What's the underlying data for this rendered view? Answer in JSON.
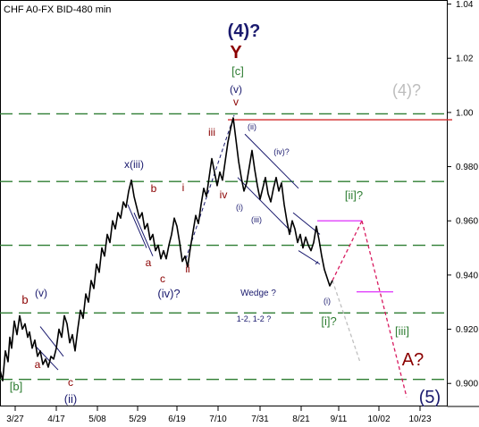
{
  "chart_data": {
    "type": "line",
    "title": "CHF A0-FX BID-480 min",
    "y_ticks": [
      "1.04",
      "1.02",
      "1.00",
      "0.980",
      "0.960",
      "0.940",
      "0.920",
      "0.900"
    ],
    "y_values": [
      1.04,
      1.02,
      1.0,
      0.98,
      0.96,
      0.94,
      0.92,
      0.9
    ],
    "ylim": [
      0.8915,
      1.0415
    ],
    "x_ticks": [
      "3/27",
      "4/17",
      "5/08",
      "5/29",
      "6/19",
      "7/10",
      "7/31",
      "8/21",
      "9/11",
      "10/02",
      "10/23"
    ],
    "grid": false,
    "series": [
      {
        "type": "price",
        "points": [
          [
            0,
            0.905
          ],
          [
            3,
            0.901
          ],
          [
            6,
            0.912
          ],
          [
            9,
            0.908
          ],
          [
            11,
            0.917
          ],
          [
            13,
            0.913
          ],
          [
            16,
            0.923
          ],
          [
            19,
            0.918
          ],
          [
            22,
            0.925
          ],
          [
            25,
            0.92
          ],
          [
            28,
            0.922
          ],
          [
            31,
            0.917
          ],
          [
            33,
            0.919
          ],
          [
            36,
            0.913
          ],
          [
            39,
            0.916
          ],
          [
            42,
            0.91
          ],
          [
            45,
            0.912
          ],
          [
            48,
            0.907
          ],
          [
            51,
            0.909
          ],
          [
            54,
            0.906
          ],
          [
            57,
            0.91
          ],
          [
            60,
            0.909
          ],
          [
            63,
            0.913
          ],
          [
            66,
            0.92
          ],
          [
            69,
            0.917
          ],
          [
            72,
            0.925
          ],
          [
            75,
            0.922
          ],
          [
            78,
            0.915
          ],
          [
            81,
            0.918
          ],
          [
            84,
            0.912
          ],
          [
            87,
            0.92
          ],
          [
            90,
            0.927
          ],
          [
            93,
            0.924
          ],
          [
            96,
            0.933
          ],
          [
            99,
            0.93
          ],
          [
            102,
            0.938
          ],
          [
            105,
            0.935
          ],
          [
            108,
            0.944
          ],
          [
            111,
            0.941
          ],
          [
            114,
            0.95
          ],
          [
            117,
            0.947
          ],
          [
            120,
            0.955
          ],
          [
            123,
            0.952
          ],
          [
            126,
            0.96
          ],
          [
            129,
            0.957
          ],
          [
            132,
            0.963
          ],
          [
            135,
            0.961
          ],
          [
            138,
            0.967
          ],
          [
            141,
            0.965
          ],
          [
            144,
            0.971
          ],
          [
            147,
            0.975
          ],
          [
            150,
            0.969
          ],
          [
            153,
            0.965
          ],
          [
            156,
            0.961
          ],
          [
            159,
            0.963
          ],
          [
            162,
            0.957
          ],
          [
            165,
            0.959
          ],
          [
            168,
            0.953
          ],
          [
            171,
            0.955
          ],
          [
            174,
            0.949
          ],
          [
            177,
            0.951
          ],
          [
            180,
            0.946
          ],
          [
            183,
            0.949
          ],
          [
            186,
            0.946
          ],
          [
            189,
            0.951
          ],
          [
            192,
            0.955
          ],
          [
            195,
            0.961
          ],
          [
            198,
            0.958
          ],
          [
            201,
            0.952
          ],
          [
            204,
            0.945
          ],
          [
            207,
            0.947
          ],
          [
            210,
            0.943
          ],
          [
            213,
            0.95
          ],
          [
            216,
            0.956
          ],
          [
            219,
            0.962
          ],
          [
            222,
            0.959
          ],
          [
            225,
            0.966
          ],
          [
            228,
            0.972
          ],
          [
            231,
            0.969
          ],
          [
            234,
            0.976
          ],
          [
            237,
            0.983
          ],
          [
            240,
            0.978
          ],
          [
            243,
            0.973
          ],
          [
            246,
            0.978
          ],
          [
            249,
            0.975
          ],
          [
            252,
            0.982
          ],
          [
            255,
            0.989
          ],
          [
            258,
            0.994
          ],
          [
            261,
            0.998
          ],
          [
            264,
            0.99
          ],
          [
            267,
            0.982
          ],
          [
            270,
            0.976
          ],
          [
            273,
            0.971
          ],
          [
            276,
            0.974
          ],
          [
            279,
            0.98
          ],
          [
            282,
            0.986
          ],
          [
            285,
            0.979
          ],
          [
            288,
            0.973
          ],
          [
            291,
            0.968
          ],
          [
            294,
            0.972
          ],
          [
            297,
            0.976
          ],
          [
            300,
            0.97
          ],
          [
            303,
            0.967
          ],
          [
            306,
            0.972
          ],
          [
            309,
            0.976
          ],
          [
            312,
            0.971
          ],
          [
            315,
            0.974
          ],
          [
            318,
            0.966
          ],
          [
            321,
            0.96
          ],
          [
            324,
            0.955
          ],
          [
            327,
            0.96
          ],
          [
            330,
            0.957
          ],
          [
            333,
            0.952
          ],
          [
            336,
            0.955
          ],
          [
            339,
            0.95
          ],
          [
            342,
            0.954
          ],
          [
            345,
            0.951
          ],
          [
            348,
            0.949
          ],
          [
            351,
            0.952
          ],
          [
            354,
            0.958
          ],
          [
            357,
            0.953
          ],
          [
            360,
            0.947
          ],
          [
            363,
            0.942
          ],
          [
            366,
            0.939
          ],
          [
            369,
            0.936
          ],
          [
            372,
            0.938
          ]
        ]
      }
    ],
    "horizontal_levels": [
      0.9995,
      0.9745,
      0.951,
      0.926,
      0.9015
    ],
    "annotations": [
      {
        "text": "(4)?",
        "color": "#1a1a6e"
      },
      {
        "text": "Y",
        "color": "#8b0000"
      },
      {
        "text": "[c]",
        "color": "#2e7d32"
      },
      {
        "text": "(v)",
        "color": "#1a1a6e"
      },
      {
        "text": "v",
        "color": "#8b0000"
      },
      {
        "text": "(4)?",
        "color": "#bdbdbd"
      },
      {
        "text": "iii",
        "color": "#8b0000"
      },
      {
        "text": "(ii)",
        "color": "#1a1a6e"
      },
      {
        "text": "(iv)?",
        "color": "#1a1a6e"
      },
      {
        "text": "x(iii)",
        "color": "#1a1a6e"
      },
      {
        "text": "b",
        "color": "#8b0000"
      },
      {
        "text": "i",
        "color": "#8b0000"
      },
      {
        "text": "iv",
        "color": "#8b0000"
      },
      {
        "text": "(i)",
        "color": "#1a1a6e"
      },
      {
        "text": "(iii)",
        "color": "#1a1a6e"
      },
      {
        "text": "[ii]?",
        "color": "#2e7d32"
      },
      {
        "text": "a",
        "color": "#8b0000"
      },
      {
        "text": "c",
        "color": "#8b0000"
      },
      {
        "text": "ii",
        "color": "#8b0000"
      },
      {
        "text": "(iv)?",
        "color": "#1a1a6e"
      },
      {
        "text": "Wedge ?",
        "color": "#1a1a6e"
      },
      {
        "text": "(i)",
        "color": "#1a1a6e"
      },
      {
        "text": "b",
        "color": "#8b0000"
      },
      {
        "text": "(v)",
        "color": "#1a1a6e"
      },
      {
        "text": "1-2, 1-2 ?",
        "color": "#1a1a6e"
      },
      {
        "text": "[i]?",
        "color": "#2e7d32"
      },
      {
        "text": "[iii]",
        "color": "#2e7d32"
      },
      {
        "text": "a",
        "color": "#8b0000"
      },
      {
        "text": "c",
        "color": "#8b0000"
      },
      {
        "text": "A?",
        "color": "#8b0000"
      },
      {
        "text": "[b]",
        "color": "#2e7d32"
      },
      {
        "text": "(ii)",
        "color": "#1a1a6e"
      },
      {
        "text": "(5)",
        "color": "#1a1a6e"
      }
    ],
    "colors": {
      "price": "#000000",
      "levels": "#2e7d32",
      "resistance": "#d32f2f",
      "projection": "#d81b60",
      "magenta": "#e040fb",
      "channel": "#1a1a6e",
      "ghost": "#c0c0c0"
    }
  }
}
